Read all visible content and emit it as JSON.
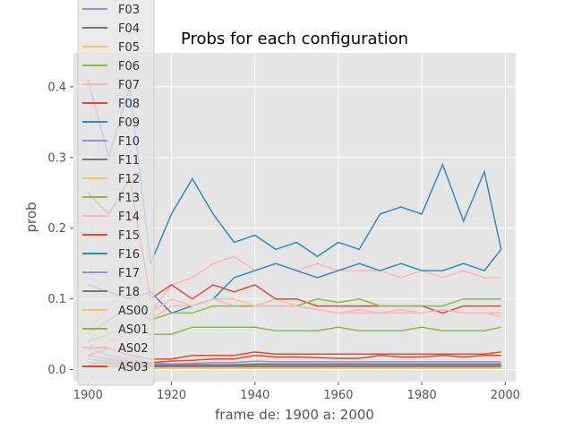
{
  "chart_data": {
    "type": "line",
    "title": "Probs for each configuration",
    "xlabel": "frame de: 1900 a: 2000",
    "ylabel": "prob",
    "xlim": [
      1896.5,
      2002.5
    ],
    "ylim": [
      -0.017,
      0.448
    ],
    "xticks": [
      1900,
      1920,
      1940,
      1960,
      1980,
      2000
    ],
    "yticks": [
      0.0,
      0.1,
      0.2,
      0.3,
      0.4
    ],
    "ytick_labels": [
      "0.0",
      "0.1",
      "0.2",
      "0.3",
      "0.4"
    ],
    "grid": true,
    "legend_position": "upper-left",
    "x": [
      1900,
      1905,
      1910,
      1915,
      1920,
      1925,
      1930,
      1935,
      1940,
      1945,
      1950,
      1955,
      1960,
      1965,
      1970,
      1975,
      1980,
      1985,
      1990,
      1995,
      1999
    ],
    "series": [
      {
        "name": "F03",
        "color": "#988ED5",
        "values": [
          0.03,
          0.02,
          0.015,
          0.01,
          0.008,
          0.007,
          0.007,
          0.006,
          0.007,
          0.006,
          0.006,
          0.006,
          0.006,
          0.006,
          0.006,
          0.006,
          0.006,
          0.006,
          0.006,
          0.006,
          0.006
        ]
      },
      {
        "name": "F04",
        "color": "#777777",
        "values": [
          0.02,
          0.015,
          0.01,
          0.006,
          0.005,
          0.005,
          0.005,
          0.005,
          0.005,
          0.005,
          0.005,
          0.005,
          0.005,
          0.005,
          0.005,
          0.005,
          0.005,
          0.005,
          0.005,
          0.005,
          0.005
        ]
      },
      {
        "name": "F05",
        "color": "#FBC15E",
        "values": [
          0.01,
          0.008,
          0.006,
          0.003,
          0.003,
          0.003,
          0.003,
          0.003,
          0.003,
          0.003,
          0.003,
          0.003,
          0.003,
          0.003,
          0.003,
          0.003,
          0.003,
          0.003,
          0.003,
          0.003,
          0.003
        ]
      },
      {
        "name": "F06",
        "color": "#8EBA42",
        "values": [
          0.015,
          0.01,
          0.008,
          0.005,
          0.004,
          0.004,
          0.004,
          0.004,
          0.004,
          0.004,
          0.004,
          0.004,
          0.004,
          0.004,
          0.004,
          0.004,
          0.004,
          0.004,
          0.004,
          0.004,
          0.004
        ]
      },
      {
        "name": "F07",
        "color": "#FFB5B8",
        "values": [
          0.05,
          0.09,
          0.12,
          0.07,
          0.09,
          0.09,
          0.1,
          0.09,
          0.09,
          0.1,
          0.09,
          0.085,
          0.08,
          0.08,
          0.08,
          0.085,
          0.08,
          0.085,
          0.08,
          0.08,
          0.075
        ]
      },
      {
        "name": "F08",
        "color": "#E24A33",
        "values": [
          0.02,
          0.015,
          0.012,
          0.01,
          0.012,
          0.013,
          0.015,
          0.015,
          0.02,
          0.018,
          0.018,
          0.017,
          0.016,
          0.016,
          0.02,
          0.018,
          0.018,
          0.02,
          0.018,
          0.02,
          0.02
        ]
      },
      {
        "name": "F09",
        "color": "#348ABD",
        "values": [
          0.41,
          0.3,
          0.4,
          0.15,
          0.22,
          0.27,
          0.22,
          0.18,
          0.19,
          0.17,
          0.18,
          0.16,
          0.18,
          0.17,
          0.22,
          0.23,
          0.22,
          0.29,
          0.21,
          0.28,
          0.17
        ]
      },
      {
        "name": "F10",
        "color": "#988ED5",
        "values": [
          0.005,
          0.004,
          0.004,
          0.003,
          0.004,
          0.004,
          0.004,
          0.004,
          0.004,
          0.004,
          0.004,
          0.004,
          0.004,
          0.004,
          0.004,
          0.004,
          0.004,
          0.004,
          0.004,
          0.004,
          0.004
        ]
      },
      {
        "name": "F11",
        "color": "#777777",
        "values": [
          0.006,
          0.005,
          0.005,
          0.004,
          0.005,
          0.005,
          0.005,
          0.005,
          0.005,
          0.005,
          0.005,
          0.005,
          0.005,
          0.005,
          0.005,
          0.005,
          0.005,
          0.005,
          0.005,
          0.005,
          0.005
        ]
      },
      {
        "name": "F12",
        "color": "#FBC15E",
        "values": [
          0.003,
          0.003,
          0.003,
          0.002,
          0.002,
          0.002,
          0.002,
          0.002,
          0.002,
          0.002,
          0.002,
          0.002,
          0.002,
          0.002,
          0.002,
          0.002,
          0.002,
          0.002,
          0.002,
          0.002,
          0.002
        ]
      },
      {
        "name": "F13",
        "color": "#8EBA42",
        "values": [
          0.04,
          0.05,
          0.06,
          0.05,
          0.05,
          0.06,
          0.06,
          0.06,
          0.06,
          0.055,
          0.055,
          0.055,
          0.06,
          0.055,
          0.055,
          0.055,
          0.06,
          0.055,
          0.055,
          0.055,
          0.06
        ]
      },
      {
        "name": "F14",
        "color": "#FFB5B8",
        "values": [
          0.02,
          0.04,
          0.05,
          0.08,
          0.12,
          0.13,
          0.15,
          0.16,
          0.14,
          0.15,
          0.14,
          0.15,
          0.14,
          0.14,
          0.14,
          0.13,
          0.14,
          0.13,
          0.14,
          0.13,
          0.13
        ]
      },
      {
        "name": "F15",
        "color": "#E24A33",
        "values": [
          0.25,
          0.22,
          0.27,
          0.1,
          0.12,
          0.1,
          0.12,
          0.11,
          0.12,
          0.1,
          0.1,
          0.09,
          0.09,
          0.09,
          0.09,
          0.09,
          0.09,
          0.08,
          0.09,
          0.09,
          0.09
        ]
      },
      {
        "name": "F16",
        "color": "#348ABD",
        "values": [
          0.12,
          0.11,
          0.1,
          0.11,
          0.08,
          0.09,
          0.1,
          0.13,
          0.14,
          0.15,
          0.14,
          0.13,
          0.14,
          0.15,
          0.14,
          0.15,
          0.14,
          0.14,
          0.15,
          0.14,
          0.17
        ]
      },
      {
        "name": "F17",
        "color": "#988ED5",
        "values": [
          0.015,
          0.012,
          0.01,
          0.008,
          0.008,
          0.009,
          0.01,
          0.01,
          0.012,
          0.011,
          0.011,
          0.011,
          0.011,
          0.011,
          0.011,
          0.011,
          0.011,
          0.011,
          0.011,
          0.011,
          0.011
        ]
      },
      {
        "name": "F18",
        "color": "#777777",
        "values": [
          0.01,
          0.009,
          0.008,
          0.006,
          0.006,
          0.007,
          0.007,
          0.007,
          0.008,
          0.008,
          0.008,
          0.008,
          0.008,
          0.008,
          0.008,
          0.008,
          0.008,
          0.008,
          0.008,
          0.008,
          0.008
        ]
      },
      {
        "name": "AS00",
        "color": "#FBC15E",
        "values": [
          0.004,
          0.004,
          0.003,
          0.002,
          0.002,
          0.002,
          0.002,
          0.002,
          0.002,
          0.002,
          0.002,
          0.002,
          0.002,
          0.002,
          0.002,
          0.002,
          0.002,
          0.002,
          0.002,
          0.002,
          0.002
        ]
      },
      {
        "name": "AS01",
        "color": "#8EBA42",
        "values": [
          0.05,
          0.07,
          0.09,
          0.07,
          0.08,
          0.08,
          0.09,
          0.09,
          0.09,
          0.09,
          0.09,
          0.1,
          0.095,
          0.1,
          0.09,
          0.09,
          0.09,
          0.09,
          0.1,
          0.1,
          0.1
        ]
      },
      {
        "name": "AS02",
        "color": "#FFB5B8",
        "values": [
          0.03,
          0.05,
          0.06,
          0.08,
          0.1,
          0.09,
          0.1,
          0.1,
          0.09,
          0.09,
          0.09,
          0.085,
          0.08,
          0.085,
          0.08,
          0.08,
          0.08,
          0.085,
          0.08,
          0.08,
          0.08
        ]
      },
      {
        "name": "AS03",
        "color": "#E24A33",
        "values": [
          0.02,
          0.03,
          0.02,
          0.015,
          0.015,
          0.02,
          0.02,
          0.02,
          0.025,
          0.022,
          0.022,
          0.022,
          0.022,
          0.022,
          0.022,
          0.022,
          0.022,
          0.022,
          0.022,
          0.022,
          0.025
        ]
      }
    ]
  }
}
